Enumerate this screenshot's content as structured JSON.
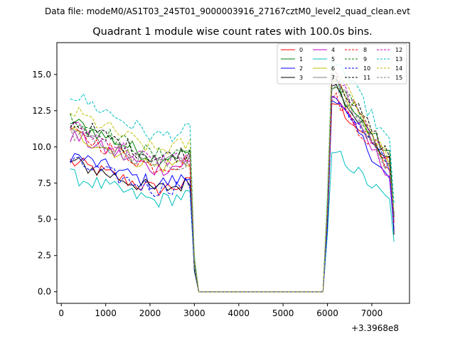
{
  "figure": {
    "suptitle": "Data file: modeM0/AS1T03_245T01_9000003916_27167cztM0_level2_quad_clean.evt"
  },
  "chart_data": {
    "type": "line",
    "title": "Quadrant 1 module wise count rates with 100.0s bins.",
    "xlabel": "",
    "ylabel": "",
    "x_offset_label": "+3.3968e8",
    "xlim": [
      -100,
      7850
    ],
    "ylim": [
      -0.8,
      17.2
    ],
    "xticks": [
      0,
      1000,
      2000,
      3000,
      4000,
      5000,
      6000,
      7000
    ],
    "yticks": [
      0.0,
      2.5,
      5.0,
      7.5,
      10.0,
      12.5,
      15.0
    ],
    "ytick_labels": [
      "0.0",
      "2.5",
      "5.0",
      "7.5",
      "10.0",
      "12.5",
      "15.0"
    ],
    "legend_location": "upper-right",
    "legend_columns": 4,
    "x_segments": [
      {
        "start": 200,
        "end": 3100,
        "step": 100
      },
      {
        "start": 3100,
        "end": 5900,
        "step": 100
      },
      {
        "start": 5900,
        "end": 7500,
        "step": 100
      }
    ],
    "series": [
      {
        "name": "0",
        "color": "#ff0000",
        "dashed": false,
        "level1": 9.0,
        "level2": 10.5,
        "peak": 13.0
      },
      {
        "name": "1",
        "color": "#008000",
        "dashed": false,
        "level1": 11.8,
        "level2": 11.0,
        "peak": 14.0
      },
      {
        "name": "2",
        "color": "#0000ff",
        "dashed": false,
        "level1": 9.5,
        "level2": 9.0,
        "peak": 13.2
      },
      {
        "name": "3",
        "color": "#000000",
        "dashed": false,
        "level1": 9.0,
        "level2": 10.5,
        "peak": 14.2
      },
      {
        "name": "4",
        "color": "#bf00bf",
        "dashed": false,
        "level1": 10.8,
        "level2": 9.5,
        "peak": 13.5
      },
      {
        "name": "5",
        "color": "#00bfbf",
        "dashed": false,
        "level1": 8.0,
        "level2": 7.3,
        "peak": 9.6
      },
      {
        "name": "6",
        "color": "#bfbf00",
        "dashed": false,
        "level1": 11.0,
        "level2": 10.5,
        "peak": 14.5
      },
      {
        "name": "7",
        "color": "#808080",
        "dashed": false,
        "level1": 11.2,
        "level2": 10.0,
        "peak": 14.5
      },
      {
        "name": "8",
        "color": "#ff0000",
        "dashed": true,
        "level1": 11.0,
        "level2": 10.0,
        "peak": 13.3
      },
      {
        "name": "9",
        "color": "#008000",
        "dashed": true,
        "level1": 12.0,
        "level2": 10.0,
        "peak": 14.8
      },
      {
        "name": "10",
        "color": "#0000ff",
        "dashed": true,
        "level1": 9.0,
        "level2": 10.0,
        "peak": 13.5
      },
      {
        "name": "11",
        "color": "#000000",
        "dashed": true,
        "level1": 11.8,
        "level2": 11.0,
        "peak": 14.8
      },
      {
        "name": "12",
        "color": "#bf00bf",
        "dashed": true,
        "level1": 11.5,
        "level2": 10.0,
        "peak": 15.0
      },
      {
        "name": "13",
        "color": "#00bfbf",
        "dashed": true,
        "level1": 13.7,
        "level2": 12.0,
        "peak": 16.0
      },
      {
        "name": "14",
        "color": "#bfbf00",
        "dashed": true,
        "level1": 12.5,
        "level2": 10.5,
        "peak": 15.5
      },
      {
        "name": "15",
        "color": "#808080",
        "dashed": true,
        "level1": 11.0,
        "level2": 10.0,
        "peak": 14.0
      }
    ]
  }
}
